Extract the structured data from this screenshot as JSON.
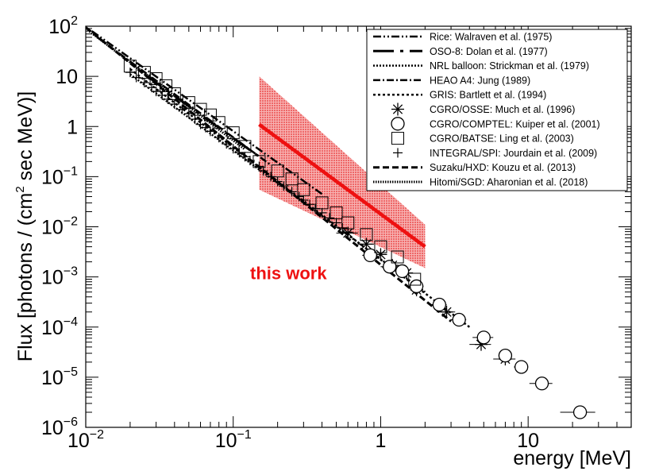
{
  "chart_data": {
    "type": "scatter",
    "x_scale": "log",
    "y_scale": "log",
    "xlim": [
      0.01,
      50
    ],
    "ylim": [
      1e-06,
      100
    ],
    "xlabel": "energy [MeV]",
    "ylabel": "Flux [photons / (cm",
    "ylabel_sup": "2",
    "ylabel_end": " sec MeV)]",
    "x_ticks": [
      {
        "value": 0.01,
        "base": "10",
        "exp": "−2"
      },
      {
        "value": 0.1,
        "base": "10",
        "exp": "−1"
      },
      {
        "value": 1,
        "base": "1",
        "exp": ""
      },
      {
        "value": 10,
        "base": "10",
        "exp": ""
      }
    ],
    "y_ticks": [
      {
        "value": 1e-06,
        "base": "10",
        "exp": "−6"
      },
      {
        "value": 1e-05,
        "base": "10",
        "exp": "−5"
      },
      {
        "value": 0.0001,
        "base": "10",
        "exp": "−4"
      },
      {
        "value": 0.001,
        "base": "10",
        "exp": "−3"
      },
      {
        "value": 0.01,
        "base": "10",
        "exp": "−2"
      },
      {
        "value": 0.1,
        "base": "10",
        "exp": "−1"
      },
      {
        "value": 1,
        "base": "1",
        "exp": ""
      },
      {
        "value": 10,
        "base": "10",
        "exp": ""
      },
      {
        "value": 100,
        "base": "10",
        "exp": "2"
      }
    ],
    "annotation": {
      "text": "this work",
      "color": "#ee1111",
      "x": 0.45,
      "y": 0.0012
    },
    "legend": {
      "position": "top-right",
      "entries": [
        {
          "label": "Rice: Walraven et al. (1975)",
          "marker": "line",
          "dash": "10,3,2,3,2,3",
          "width": 2.5
        },
        {
          "label": "OSO-8: Dolan et al. (1977)",
          "marker": "line",
          "dash": "26,8,4,8",
          "width": 3
        },
        {
          "label": "NRL balloon: Strickman et al. (1979)",
          "marker": "line",
          "dash": "2,2",
          "width": 2.5
        },
        {
          "label": "HEAO A4: Jung (1989)",
          "marker": "line",
          "dash": "9,3,2,3",
          "width": 2.5
        },
        {
          "label": "GRIS: Bartlett et al. (1994)",
          "marker": "line",
          "dash": "3,3",
          "width": 2.5
        },
        {
          "label": "CGRO/OSSE: Much et al. (1996)",
          "marker": "star"
        },
        {
          "label": "CGRO/COMPTEL: Kuiper et al. (2001)",
          "marker": "circle"
        },
        {
          "label": "CGRO/BATSE: Ling et al. (2003)",
          "marker": "square"
        },
        {
          "label": "INTEGRAL/SPI: Jourdain et al. (2009)",
          "marker": "plus"
        },
        {
          "label": "Suzaku/HXD: Kouzu et al. (2013)",
          "marker": "line",
          "dash": "8,4",
          "width": 3
        },
        {
          "label": "Hitomi/SGD: Aharonian et al. (2018)",
          "marker": "line",
          "dash": "1.5,1.5",
          "width": 3
        }
      ]
    },
    "series": [
      {
        "name": "Rice: Walraven et al. (1975)",
        "kind": "line",
        "x": [
          0.011,
          0.4
        ],
        "y": [
          80,
          0.045
        ]
      },
      {
        "name": "OSO-8: Dolan et al. (1977)",
        "kind": "line",
        "x": [
          0.025,
          0.15
        ],
        "y": [
          11,
          0.25
        ]
      },
      {
        "name": "NRL balloon: Strickman et al. (1979)",
        "kind": "line",
        "x": [
          0.02,
          2
        ],
        "y": [
          11,
          0.0005
        ]
      },
      {
        "name": "HEAO A4: Jung (1989)",
        "kind": "line",
        "x": [
          0.012,
          0.18
        ],
        "y": [
          60,
          0.17
        ]
      },
      {
        "name": "GRIS: Bartlett et al. (1994)",
        "kind": "line",
        "x": [
          0.02,
          4
        ],
        "y": [
          14,
          0.0001
        ]
      },
      {
        "name": "Suzaku/HXD: Kouzu et al. (2013)",
        "kind": "line",
        "x": [
          0.01,
          3
        ],
        "y": [
          95,
          0.00013
        ]
      },
      {
        "name": "Hitomi/SGD: Aharonian et al. (2018)",
        "kind": "line",
        "x": [
          0.01,
          0.12
        ],
        "y": [
          90,
          0.35
        ]
      },
      {
        "name": "CGRO/OSSE: Much et al. (1996)",
        "kind": "star",
        "x": [
          0.6,
          0.8,
          1.0,
          1.2,
          1.5,
          1.75,
          2.8,
          4.8,
          7.0
        ],
        "y": [
          0.0075,
          0.0045,
          0.0028,
          0.0017,
          0.0012,
          0.00055,
          0.0002,
          4.5e-05,
          2.3e-05
        ],
        "xerr": [
          0.1,
          0.1,
          0.1,
          0.1,
          0.15,
          0.15,
          0.4,
          0.8,
          1.2
        ]
      },
      {
        "name": "CGRO/COMPTEL: Kuiper et al. (2001)",
        "kind": "circle",
        "x": [
          0.85,
          1.15,
          1.4,
          1.75,
          2.5,
          3.4,
          5.0,
          7.0,
          9.0,
          12.4,
          22.5
        ],
        "y": [
          0.0027,
          0.0016,
          0.0013,
          0.00065,
          0.00028,
          0.00014,
          6.2e-05,
          2.7e-05,
          1.6e-05,
          7.5e-06,
          2e-06
        ],
        "xerr": [
          0.1,
          0.15,
          0.15,
          0.2,
          0.3,
          0.4,
          0.8,
          0.7,
          1,
          2.2,
          6
        ]
      },
      {
        "name": "CGRO/BATSE: Ling et al. (2003)",
        "kind": "square",
        "x": [
          0.02,
          0.025,
          0.03,
          0.035,
          0.04,
          0.05,
          0.06,
          0.07,
          0.08,
          0.1,
          0.12,
          0.15,
          0.2,
          0.25,
          0.3,
          0.4,
          0.5,
          0.6,
          0.8,
          1.0,
          1.3,
          1.7
        ],
        "y": [
          16,
          12,
          9,
          6.5,
          4.5,
          3.0,
          2.2,
          1.7,
          1.2,
          0.75,
          0.4,
          0.2,
          0.13,
          0.09,
          0.055,
          0.03,
          0.019,
          0.012,
          0.007,
          0.004,
          0.0025,
          0.0009
        ]
      },
      {
        "name": "INTEGRAL/SPI: Jourdain et al. (2009)",
        "kind": "plus",
        "x": [
          0.02,
          0.022,
          0.025,
          0.028,
          0.03,
          0.033,
          0.036,
          0.04,
          0.045,
          0.05,
          0.055,
          0.06,
          0.065,
          0.07,
          0.08,
          0.09,
          0.1,
          0.11,
          0.12,
          0.13,
          0.15,
          0.16,
          0.18,
          0.2,
          0.22,
          0.25,
          0.28,
          0.3,
          0.33,
          0.36,
          0.4,
          0.45,
          0.5,
          0.55,
          0.6
        ],
        "y": [
          12,
          9.5,
          7.5,
          6,
          5,
          4.2,
          3.5,
          2.8,
          2.2,
          1.8,
          1.4,
          1.1,
          0.95,
          0.8,
          0.6,
          0.45,
          0.36,
          0.3,
          0.25,
          0.21,
          0.16,
          0.13,
          0.1,
          0.08,
          0.065,
          0.05,
          0.04,
          0.034,
          0.028,
          0.023,
          0.019,
          0.015,
          0.012,
          0.0095,
          0.0078
        ]
      },
      {
        "name": "this work",
        "kind": "band",
        "x": [
          0.15,
          2.0
        ],
        "y_center": [
          1.1,
          0.004
        ],
        "y_upper": [
          10,
          0.011
        ],
        "y_lower": [
          0.055,
          0.0015
        ],
        "color": "#ee1111"
      }
    ]
  }
}
